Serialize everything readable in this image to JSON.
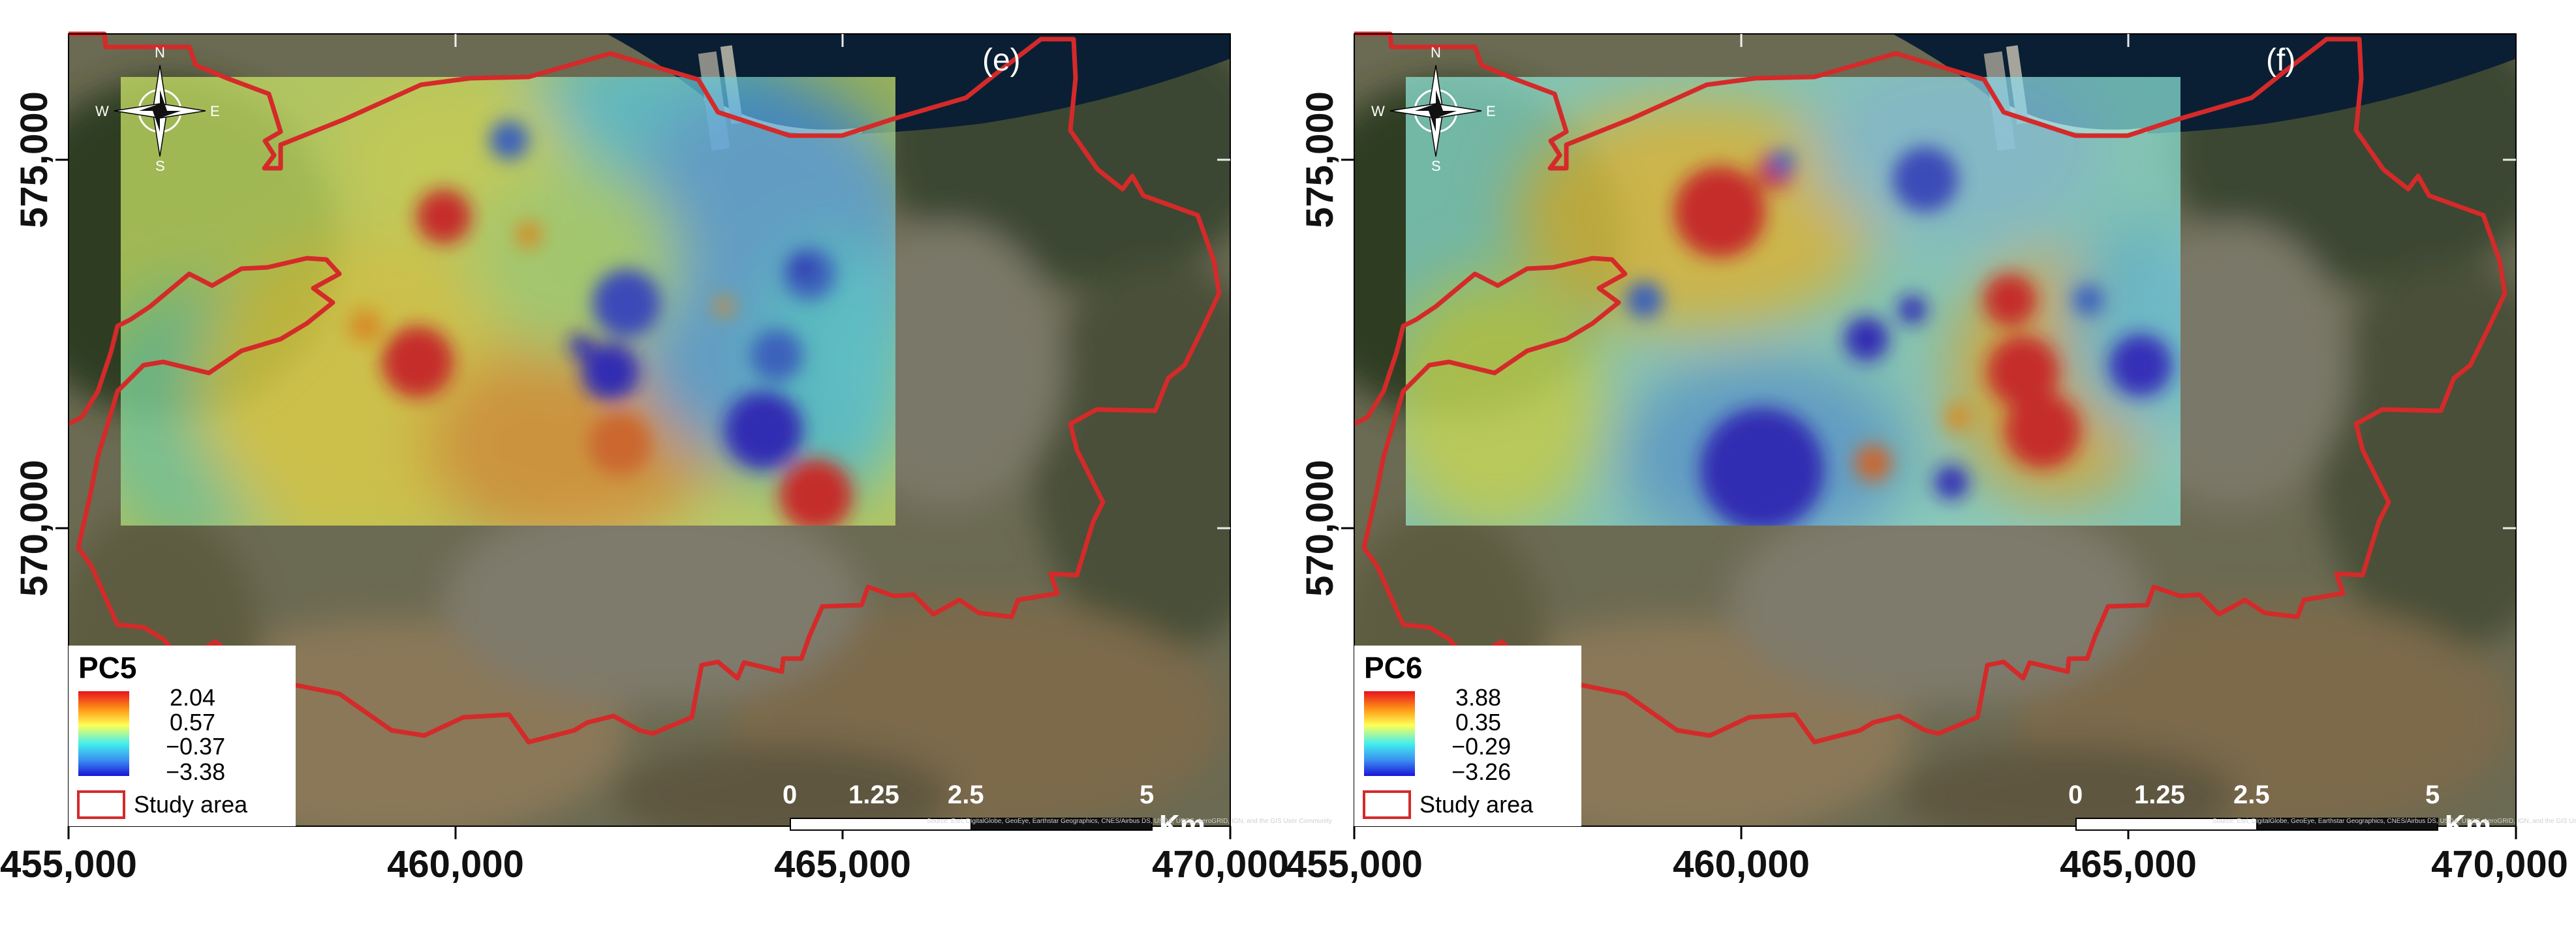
{
  "panels": [
    {
      "letter": "(e)",
      "legend": {
        "title": "PC5",
        "values": [
          "2.04",
          "0.57",
          "−0.37",
          "−3.38"
        ],
        "study_area_label": "Study area"
      },
      "scale_bar": {
        "ticks": [
          "0",
          "1.25",
          "2.5",
          "5"
        ],
        "unit": "Km"
      },
      "x_ticks": [
        "455,000",
        "460,000",
        "465,000",
        "470,000"
      ],
      "y_ticks": [
        "575,000",
        "570,000"
      ],
      "compass": {
        "n": "N",
        "s": "S",
        "e": "E",
        "w": "W"
      },
      "credit": "Source: Esri, DigitalGlobe, GeoEye, Earthstar Geographics, CNES/Airbus DS, USDA, USGS, AeroGRID, IGN, and the GIS User Community"
    },
    {
      "letter": "(f)",
      "legend": {
        "title": "PC6",
        "values": [
          "3.88",
          "0.35",
          "−0.29",
          "−3.26"
        ],
        "study_area_label": "Study area"
      },
      "scale_bar": {
        "ticks": [
          "0",
          "1.25",
          "2.5",
          "5"
        ],
        "unit": "Km"
      },
      "x_ticks": [
        "455,000",
        "460,000",
        "465,000",
        "470,000"
      ],
      "y_ticks": [
        "575,000",
        "570,000"
      ],
      "compass": {
        "n": "N",
        "s": "S",
        "e": "E",
        "w": "W"
      },
      "credit": "Source: Esri, DigitalGlobe, GeoEye, Earthstar Geographics, CNES/Airbus DS, USDA, USGS, AeroGRID, IGN, and the GIS User Community"
    }
  ],
  "colors": {
    "boundary": "#d42a2a",
    "sea": "#0a1f33",
    "ramp_high": "#d7191c",
    "ramp_mid": "#ffff66",
    "ramp_low": "#2b2bd9"
  }
}
